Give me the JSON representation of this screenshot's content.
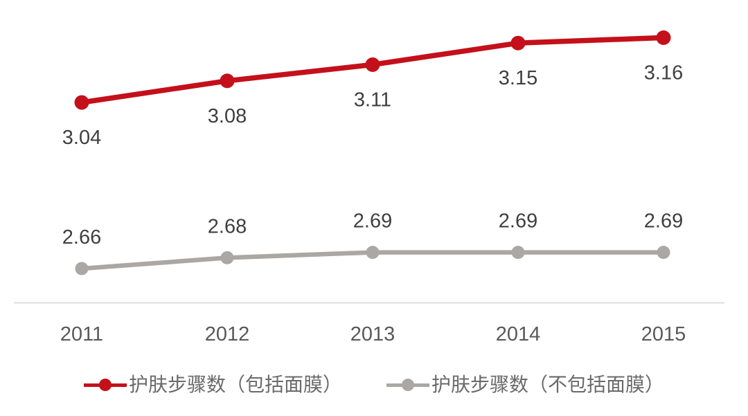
{
  "chart_data": {
    "type": "line",
    "categories": [
      "2011",
      "2012",
      "2013",
      "2014",
      "2015"
    ],
    "series": [
      {
        "name": "护肤步骤数（包括面膜）",
        "values": [
          3.04,
          3.08,
          3.11,
          3.15,
          3.16
        ],
        "labels": [
          "3.04",
          "3.08",
          "3.11",
          "3.15",
          "3.16"
        ],
        "color": "#c4101a",
        "label_position": "below"
      },
      {
        "name": "护肤步骤数（不包括面膜）",
        "values": [
          2.66,
          2.68,
          2.69,
          2.69,
          2.69
        ],
        "labels": [
          "2.66",
          "2.68",
          "2.69",
          "2.69",
          "2.69"
        ],
        "color": "#aba7a4",
        "label_position": "above"
      }
    ],
    "title": "",
    "xlabel": "",
    "ylabel": "",
    "grid": false,
    "legend_position": "bottom",
    "axis_line_color": "#dcdcdc",
    "value_label_color": "#3f3f3f",
    "tick_label_color": "#595959"
  }
}
